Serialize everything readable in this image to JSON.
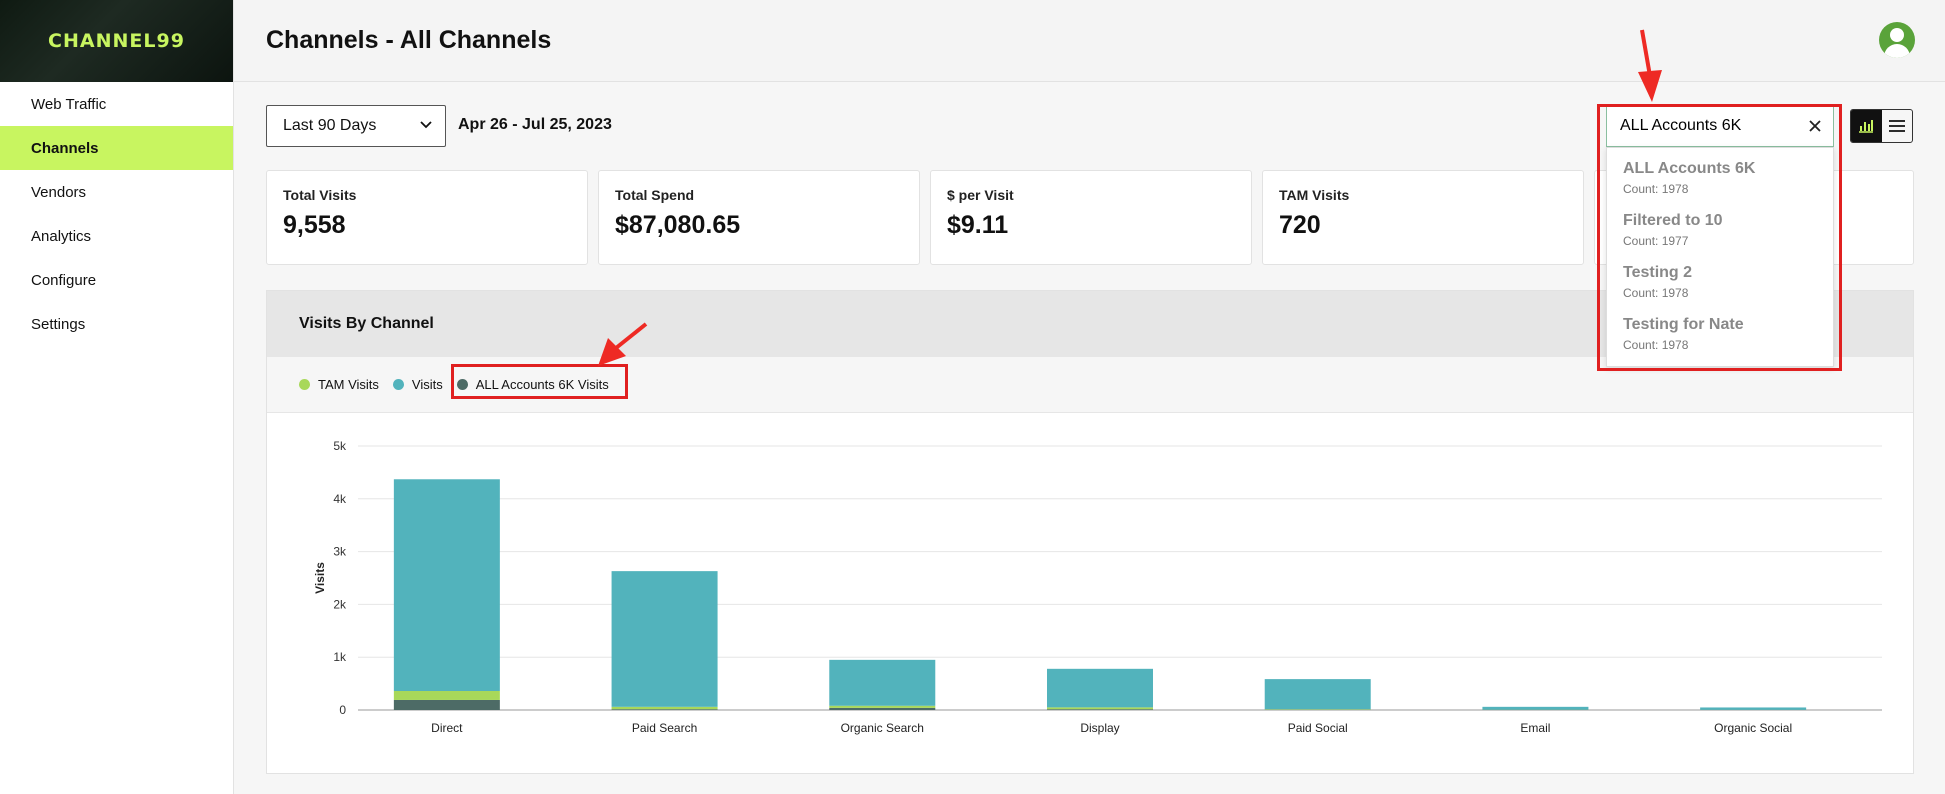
{
  "app": {
    "logo": "CHANNEL99"
  },
  "sidebar": {
    "items": [
      {
        "label": "Web Traffic"
      },
      {
        "label": "Channels"
      },
      {
        "label": "Vendors"
      },
      {
        "label": "Analytics"
      },
      {
        "label": "Configure"
      },
      {
        "label": "Settings"
      }
    ],
    "active": "Channels"
  },
  "header": {
    "title": "Channels - All Channels"
  },
  "filters": {
    "range_value": "Last 90 Days",
    "date_text": "Apr 26 - Jul 25, 2023",
    "search_value": "ALL Accounts 6K"
  },
  "dropdown": {
    "items": [
      {
        "name": "ALL Accounts 6K",
        "count": "Count: 1978"
      },
      {
        "name": "Filtered to 10",
        "count": "Count: 1977"
      },
      {
        "name": "Testing 2",
        "count": "Count: 1978"
      },
      {
        "name": "Testing for Nate",
        "count": "Count: 1978"
      }
    ]
  },
  "stats": [
    {
      "label": "Total Visits",
      "value": "9,558"
    },
    {
      "label": "Total Spend",
      "value": "$87,080.65"
    },
    {
      "label": "$ per Visit",
      "value": "$9.11"
    },
    {
      "label": "TAM Visits",
      "value": "720"
    },
    {
      "label": "",
      "value": ""
    }
  ],
  "panel": {
    "title": "Visits By Channel"
  },
  "colors": {
    "tam": "#a8d85a",
    "visits": "#52b3bc",
    "accounts": "#4d6b66",
    "accent": "#c8f560",
    "highlight": "#e02020"
  },
  "chart_data": {
    "type": "bar",
    "stacked": true,
    "title": "Visits By Channel",
    "ylabel": "Visits",
    "xlabel": "",
    "ylim": [
      0,
      5000
    ],
    "yticks": [
      "0",
      "1k",
      "2k",
      "3k",
      "4k",
      "5k"
    ],
    "categories": [
      "Direct",
      "Paid Search",
      "Organic Search",
      "Display",
      "Paid Social",
      "Email",
      "Organic Social"
    ],
    "series": [
      {
        "name": "ALL Accounts 6K Visits",
        "values": [
          190,
          15,
          40,
          15,
          5,
          2,
          1
        ]
      },
      {
        "name": "TAM Visits",
        "values": [
          170,
          45,
          40,
          35,
          10,
          3,
          2
        ]
      },
      {
        "name": "Visits",
        "values": [
          4010,
          2570,
          870,
          730,
          570,
          55,
          45
        ]
      }
    ],
    "legend": [
      "TAM Visits",
      "Visits",
      "ALL Accounts 6K Visits"
    ],
    "grid": true
  }
}
